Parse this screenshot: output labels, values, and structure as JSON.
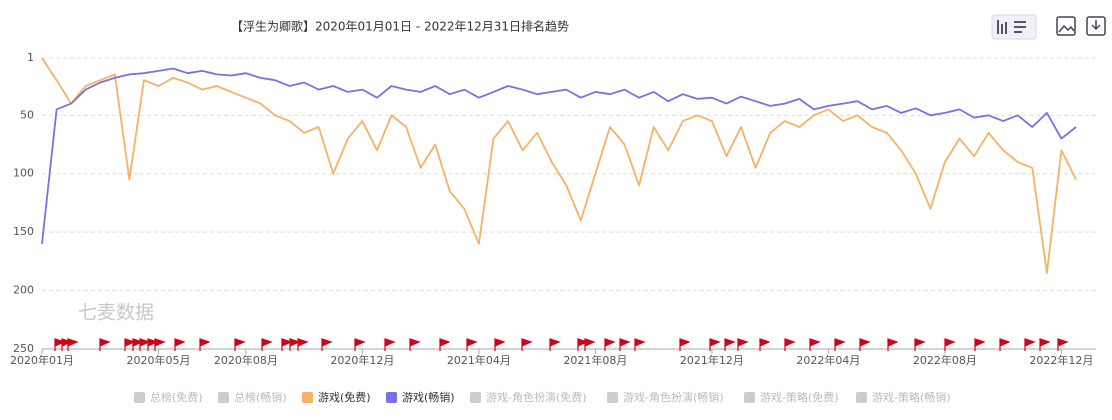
{
  "chart_data": {
    "type": "line",
    "title": "【浮生为卿歌】2020年01月01日 - 2022年12月31日排名趋势",
    "watermark": "七麦数据",
    "categories": [
      "2020年01月",
      null,
      null,
      null,
      null,
      null,
      null,
      null,
      "2020年05月",
      null,
      null,
      null,
      null,
      null,
      "2020年08月",
      null,
      null,
      null,
      null,
      null,
      null,
      null,
      "2020年12月",
      null,
      null,
      null,
      null,
      null,
      null,
      null,
      "2021年04月",
      null,
      null,
      null,
      null,
      null,
      null,
      null,
      "2021年08月",
      null,
      null,
      null,
      null,
      null,
      null,
      null,
      "2021年12月",
      null,
      null,
      null,
      null,
      null,
      null,
      null,
      "2022年04月",
      null,
      null,
      null,
      null,
      null,
      null,
      null,
      "2022年08月",
      null,
      null,
      null,
      null,
      null,
      null,
      null,
      "2022年12月",
      null
    ],
    "ylim": [
      1,
      250
    ],
    "yticks": [
      1,
      50,
      100,
      150,
      200,
      250
    ],
    "y_inverted": true,
    "grid": true,
    "series": [
      {
        "name": "总榜(免费)",
        "color": "#cccccc",
        "visible": false
      },
      {
        "name": "总榜(畅销)",
        "color": "#cccccc",
        "visible": false
      },
      {
        "name": "游戏(免费)",
        "color": "#f5b266",
        "visible": true,
        "values": [
          1,
          20,
          40,
          25,
          20,
          15,
          105,
          20,
          25,
          18,
          22,
          28,
          25,
          30,
          35,
          40,
          50,
          55,
          65,
          60,
          100,
          70,
          55,
          80,
          50,
          60,
          95,
          75,
          115,
          130,
          160,
          70,
          55,
          80,
          65,
          90,
          110,
          140,
          100,
          60,
          75,
          110,
          60,
          80,
          55,
          50,
          55,
          85,
          60,
          95,
          65,
          55,
          60,
          50,
          45,
          55,
          50,
          60,
          65,
          80,
          100,
          130,
          90,
          70,
          85,
          65,
          80,
          90,
          95,
          185,
          80,
          105
        ]
      },
      {
        "name": "游戏(畅销)",
        "color": "#7b6fe6",
        "visible": true,
        "values": [
          160,
          45,
          40,
          28,
          22,
          18,
          15,
          14,
          12,
          10,
          14,
          12,
          15,
          16,
          14,
          18,
          20,
          25,
          22,
          28,
          25,
          30,
          28,
          35,
          25,
          28,
          30,
          25,
          32,
          28,
          35,
          30,
          25,
          28,
          32,
          30,
          28,
          35,
          30,
          32,
          28,
          35,
          30,
          38,
          32,
          36,
          35,
          40,
          34,
          38,
          42,
          40,
          36,
          45,
          42,
          40,
          38,
          45,
          42,
          48,
          44,
          50,
          48,
          45,
          52,
          50,
          55,
          50,
          60,
          48,
          70,
          60
        ]
      },
      {
        "name": "游戏-角色扮演(免费)",
        "color": "#cccccc",
        "visible": false
      },
      {
        "name": "游戏-角色扮演(畅销)",
        "color": "#cccccc",
        "visible": false
      },
      {
        "name": "游戏-策略(免费)",
        "color": "#cccccc",
        "visible": false
      },
      {
        "name": "游戏-策略(畅销)",
        "color": "#cccccc",
        "visible": false
      }
    ]
  }
}
